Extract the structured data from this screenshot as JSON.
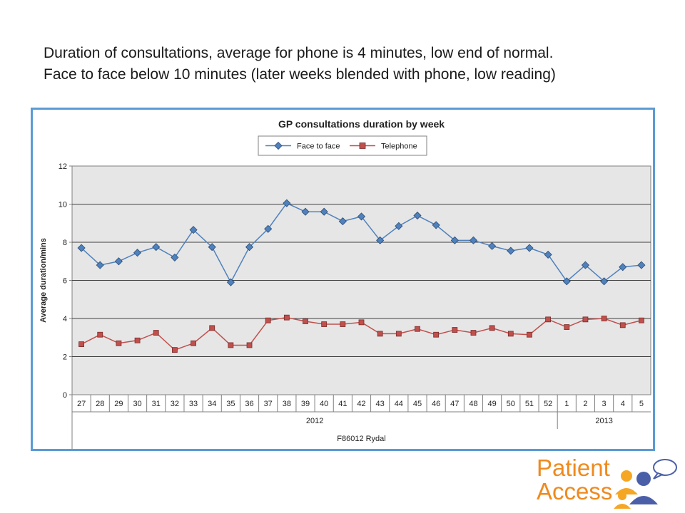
{
  "slide": {
    "caption_line1": "Duration of consultations, average for phone is 4 minutes, low end of normal.",
    "caption_line2": "Face to face below 10 minutes (later weeks blended with phone, low reading)"
  },
  "logo": {
    "line1": "Patient",
    "line2": "Access",
    "colors": {
      "text": "#ef8a1e",
      "person1": "#f5a623",
      "person2": "#4a5fa8",
      "bubble": "#4a5fa8"
    }
  },
  "chart_data": {
    "type": "line",
    "title": "GP consultations duration by week",
    "ylabel": "Average duration/mins",
    "xlabel": "F86012 Rydal",
    "ylim": [
      0,
      12
    ],
    "yticks": [
      0,
      2,
      4,
      6,
      8,
      10,
      12
    ],
    "grid": true,
    "legend": "top-center",
    "categories": [
      "27",
      "28",
      "29",
      "30",
      "31",
      "32",
      "33",
      "34",
      "35",
      "36",
      "37",
      "38",
      "39",
      "40",
      "41",
      "42",
      "43",
      "44",
      "45",
      "46",
      "47",
      "48",
      "49",
      "50",
      "51",
      "52",
      "1",
      "2",
      "3",
      "4",
      "5"
    ],
    "year_groups": [
      {
        "label": "2012",
        "count": 26
      },
      {
        "label": "2013",
        "count": 5
      }
    ],
    "series": [
      {
        "name": "Face to face",
        "color": "#4f81bd",
        "marker": "diamond",
        "values": [
          7.7,
          6.8,
          7.0,
          7.45,
          7.75,
          7.2,
          8.65,
          7.75,
          5.9,
          7.75,
          8.7,
          10.05,
          9.6,
          9.6,
          9.1,
          9.35,
          8.1,
          8.85,
          9.4,
          8.9,
          8.1,
          8.1,
          7.8,
          7.55,
          7.7,
          7.35,
          5.95,
          6.8,
          5.95,
          6.7,
          6.8
        ]
      },
      {
        "name": "Telephone",
        "color": "#c0504d",
        "marker": "square",
        "values": [
          2.65,
          3.15,
          2.7,
          2.85,
          3.25,
          2.35,
          2.7,
          3.5,
          2.6,
          2.6,
          3.9,
          4.05,
          3.85,
          3.7,
          3.7,
          3.8,
          3.2,
          3.2,
          3.45,
          3.15,
          3.4,
          3.25,
          3.5,
          3.2,
          3.15,
          3.95,
          3.55,
          3.95,
          4.0,
          3.65,
          3.9
        ]
      }
    ]
  }
}
